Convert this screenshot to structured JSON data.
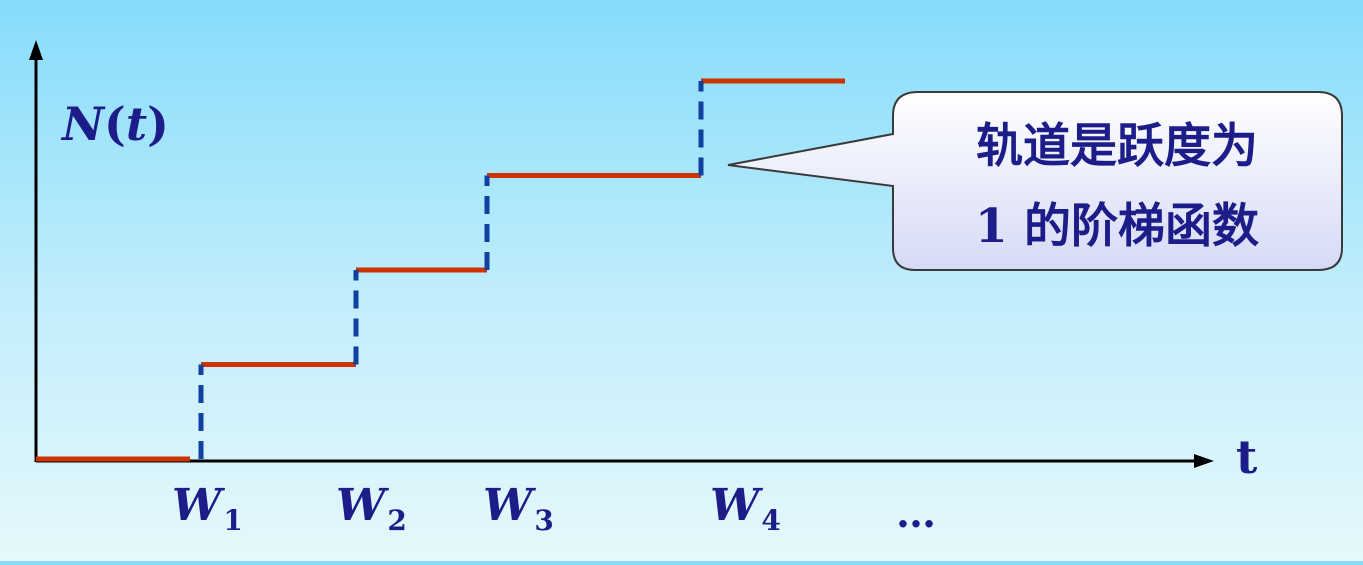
{
  "axis": {
    "y_label_main": "N",
    "y_label_open": "(",
    "y_label_var": "t",
    "y_label_close": ")",
    "x_label": "t"
  },
  "colors": {
    "axis": "#000000",
    "step": "#cc3300",
    "jump": "#1040a0",
    "label": "#1d1d8a"
  },
  "chart_data": {
    "type": "line",
    "title": "",
    "xlabel": "t",
    "ylabel": "N(t)",
    "steps": [
      {
        "from": "0",
        "to": "W1",
        "value": 0
      },
      {
        "from": "W1",
        "to": "W2",
        "value": 1
      },
      {
        "from": "W2",
        "to": "W3",
        "value": 2
      },
      {
        "from": "W3",
        "to": "W4",
        "value": 3
      },
      {
        "from": "W4",
        "to": "",
        "value": 4
      }
    ],
    "ticks": [
      {
        "name": "W",
        "sub": "1"
      },
      {
        "name": "W",
        "sub": "2"
      },
      {
        "name": "W",
        "sub": "3"
      },
      {
        "name": "W",
        "sub": "4"
      }
    ],
    "ellipsis": "…"
  },
  "callout": {
    "line1": "轨道是跃度为",
    "line2": "1 的阶梯函数"
  }
}
